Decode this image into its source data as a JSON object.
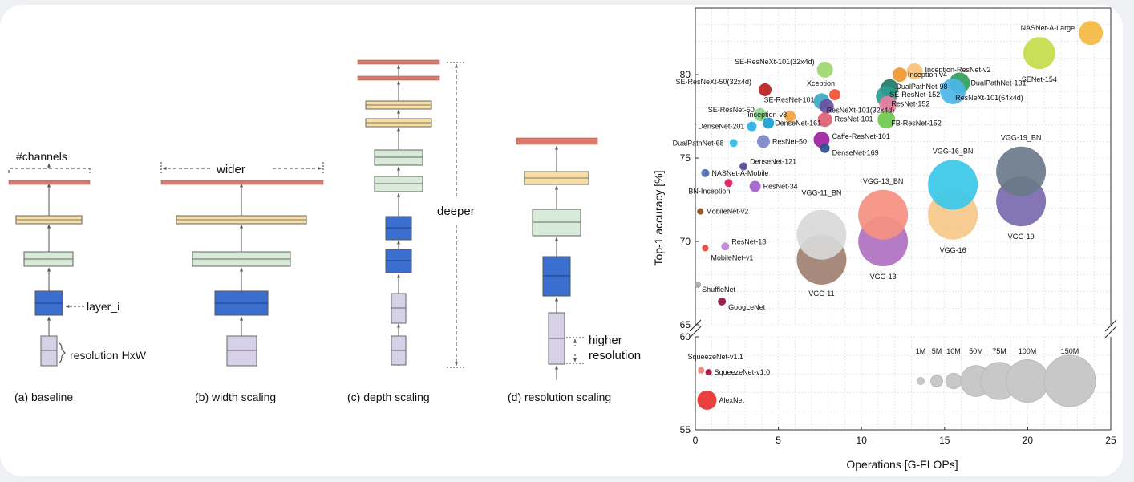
{
  "colors": {
    "head": "#d97a6c",
    "yellow": "#f8dfa1",
    "green": "#d8ebd8",
    "blue": "#3a6fd0",
    "lavender": "#d6d1e6",
    "box_stroke": "#666666",
    "arrow": "#555555",
    "grid": "#d8d8d8"
  },
  "diagram": {
    "annotations": {
      "channels": "#channels",
      "layer_i": "layer_i",
      "resolution": "resolution HxW",
      "wider": "wider",
      "deeper": "deeper",
      "higher_line1": "higher",
      "higher_line2": "resolution"
    },
    "panels": [
      {
        "id": "a",
        "caption": "(a) baseline"
      },
      {
        "id": "b",
        "caption": "(b) width scaling"
      },
      {
        "id": "c",
        "caption": "(c) depth scaling"
      },
      {
        "id": "d",
        "caption": "(d) resolution scaling"
      }
    ]
  },
  "chart_data": {
    "type": "scatter",
    "xlabel": "Operations [G-FLOPs]",
    "ylabel": "Top-1 accuracy [%]",
    "xlim": [
      0,
      25
    ],
    "xticks": [
      0,
      5,
      10,
      15,
      20,
      25
    ],
    "upper_ylim": [
      65,
      84
    ],
    "upper_yticks": [
      65,
      70,
      75,
      80
    ],
    "lower_ylim": [
      55,
      60
    ],
    "lower_yticks": [
      55,
      60
    ],
    "grid": true,
    "size_legend": [
      {
        "label": "1M",
        "params_m": 1
      },
      {
        "label": "5M",
        "params_m": 5
      },
      {
        "label": "10M",
        "params_m": 10
      },
      {
        "label": "50M",
        "params_m": 50
      },
      {
        "label": "75M",
        "params_m": 75
      },
      {
        "label": "100M",
        "params_m": 100
      },
      {
        "label": "150M",
        "params_m": 150
      }
    ],
    "points": [
      {
        "name": "NASNet-A-Large",
        "x": 23.8,
        "y": 82.5,
        "r": 15,
        "color": "#f5b841"
      },
      {
        "name": "SENet-154",
        "x": 20.7,
        "y": 81.3,
        "r": 20,
        "color": "#c5dc4a"
      },
      {
        "name": "SE-ResNeXt-101(32x4d)",
        "x": 7.8,
        "y": 80.3,
        "r": 10,
        "color": "#9ed66e"
      },
      {
        "name": "Inception-ResNet-v2",
        "x": 13.2,
        "y": 80.2,
        "r": 10,
        "color": "#f5c27a"
      },
      {
        "name": "Inception-v4",
        "x": 12.3,
        "y": 80.0,
        "r": 9,
        "color": "#f0962e"
      },
      {
        "name": "DualPathNet-131",
        "x": 15.9,
        "y": 79.5,
        "r": 13,
        "color": "#2e9e5a"
      },
      {
        "name": "DualPathNet-98",
        "x": 11.7,
        "y": 79.2,
        "r": 11,
        "color": "#1e7a66"
      },
      {
        "name": "SE-ResNeXt-50(32x4d)",
        "x": 4.2,
        "y": 79.1,
        "r": 8,
        "color": "#b82020"
      },
      {
        "name": "Xception",
        "x": 8.4,
        "y": 78.8,
        "r": 7,
        "color": "#f05030"
      },
      {
        "name": "SE-ResNet-152",
        "x": 11.5,
        "y": 78.7,
        "r": 13,
        "color": "#2a9d8f"
      },
      {
        "name": "ResNeXt-101(64x4d)",
        "x": 15.5,
        "y": 79.0,
        "r": 16,
        "color": "#4ab5e8"
      },
      {
        "name": "SE-ResNet-101",
        "x": 7.6,
        "y": 78.4,
        "r": 10,
        "color": "#3aa8c4"
      },
      {
        "name": "ResNeXt-101(32x4d)",
        "x": 7.9,
        "y": 78.1,
        "r": 9,
        "color": "#6a4fa0"
      },
      {
        "name": "ResNet-152",
        "x": 11.6,
        "y": 78.2,
        "r": 11,
        "color": "#e87fa0"
      },
      {
        "name": "SE-ResNet-50",
        "x": 3.9,
        "y": 77.6,
        "r": 8,
        "color": "#8ed08e"
      },
      {
        "name": "Inception-v3",
        "x": 5.7,
        "y": 77.5,
        "r": 7,
        "color": "#f5a340"
      },
      {
        "name": "ResNet-101",
        "x": 7.8,
        "y": 77.3,
        "r": 9,
        "color": "#e06070"
      },
      {
        "name": "DenseNet-161",
        "x": 4.4,
        "y": 77.1,
        "r": 7,
        "color": "#1a9fd0"
      },
      {
        "name": "DenseNet-201",
        "x": 3.4,
        "y": 76.9,
        "r": 6,
        "color": "#2ab0e0"
      },
      {
        "name": "FB-ResNet-152",
        "x": 11.5,
        "y": 77.3,
        "r": 11,
        "color": "#6ec94a"
      },
      {
        "name": "Caffe-ResNet-101",
        "x": 7.6,
        "y": 76.1,
        "r": 10,
        "color": "#a020a0"
      },
      {
        "name": "DualPathNet-68",
        "x": 2.3,
        "y": 75.9,
        "r": 5,
        "color": "#3ab5e5"
      },
      {
        "name": "ResNet-50",
        "x": 4.1,
        "y": 76.0,
        "r": 8,
        "color": "#7a86c8"
      },
      {
        "name": "DenseNet-169",
        "x": 7.8,
        "y": 75.6,
        "r": 6,
        "color": "#2a5090"
      },
      {
        "name": "DenseNet-121",
        "x": 2.9,
        "y": 74.5,
        "r": 5,
        "color": "#4a4a9a"
      },
      {
        "name": "NASNet-A-Mobile",
        "x": 0.6,
        "y": 74.1,
        "r": 5,
        "color": "#4a6aaa"
      },
      {
        "name": "BN-Inception",
        "x": 2.0,
        "y": 73.5,
        "r": 5,
        "color": "#d81b60"
      },
      {
        "name": "ResNet-34",
        "x": 3.6,
        "y": 73.3,
        "r": 7,
        "color": "#a060c8"
      },
      {
        "name": "MobileNet-v2",
        "x": 0.3,
        "y": 71.8,
        "r": 4,
        "color": "#8a4a20"
      },
      {
        "name": "ResNet-18",
        "x": 1.8,
        "y": 69.7,
        "r": 5,
        "color": "#c080d8"
      },
      {
        "name": "MobileNet-v1",
        "x": 0.6,
        "y": 69.6,
        "r": 4,
        "color": "#e84030"
      },
      {
        "name": "ShuffleNet",
        "x": 0.15,
        "y": 67.4,
        "r": 4,
        "color": "#a8a8a8"
      },
      {
        "name": "GoogLeNet",
        "x": 1.6,
        "y": 66.4,
        "r": 5,
        "color": "#8a1040"
      },
      {
        "name": "VGG-11",
        "x": 7.6,
        "y": 68.9,
        "r": 31,
        "color": "#a08070"
      },
      {
        "name": "VGG-11_BN",
        "x": 7.6,
        "y": 70.4,
        "r": 31,
        "color": "#d8d8d8"
      },
      {
        "name": "VGG-13",
        "x": 11.3,
        "y": 70.0,
        "r": 31,
        "color": "#b070c0"
      },
      {
        "name": "VGG-13_BN",
        "x": 11.3,
        "y": 71.6,
        "r": 31,
        "color": "#f59080"
      },
      {
        "name": "VGG-16",
        "x": 15.5,
        "y": 71.6,
        "r": 31,
        "color": "#f5c88a"
      },
      {
        "name": "VGG-16_BN",
        "x": 15.5,
        "y": 73.4,
        "r": 31,
        "color": "#38c8e8"
      },
      {
        "name": "VGG-19",
        "x": 19.6,
        "y": 72.4,
        "r": 31,
        "color": "#7a6aae"
      },
      {
        "name": "VGG-19_BN",
        "x": 19.6,
        "y": 74.2,
        "r": 31,
        "color": "#6a7a8a"
      },
      {
        "name": "SqueezeNet-v1.1",
        "x": 0.35,
        "y": 58.2,
        "r": 4,
        "color": "#f08070"
      },
      {
        "name": "SqueezeNet-v1.0",
        "x": 0.8,
        "y": 58.1,
        "r": 4,
        "color": "#a01040"
      },
      {
        "name": "AlexNet",
        "x": 0.7,
        "y": 56.6,
        "r": 12,
        "color": "#e83030"
      }
    ]
  }
}
